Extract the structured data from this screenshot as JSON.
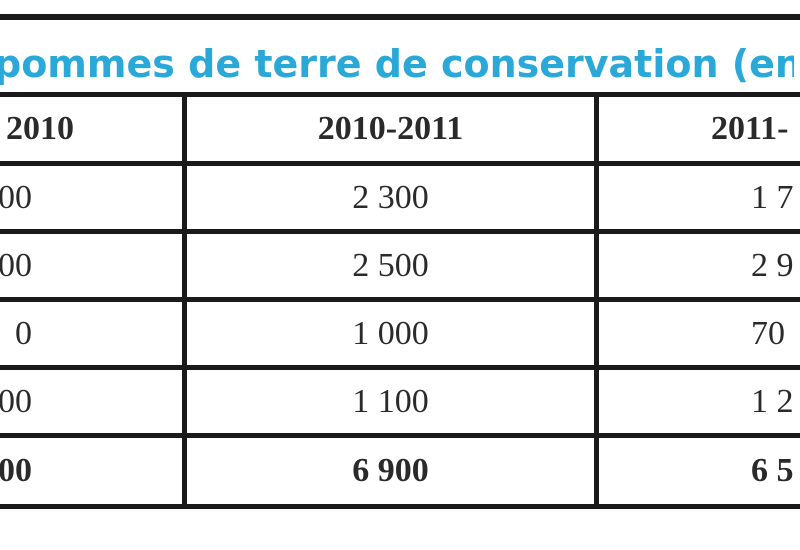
{
  "title": "pommes de terre de conservation (en",
  "columns": [
    "2010",
    "2010-2011",
    "2011-"
  ],
  "rows": [
    [
      "00",
      "2 300",
      "1 7"
    ],
    [
      "00",
      "2 500",
      "2 9"
    ],
    [
      "0",
      "1 000",
      "70"
    ],
    [
      "00",
      "1 100",
      "1 2"
    ]
  ],
  "total": [
    "00",
    "6 900",
    "6 5"
  ],
  "colors": {
    "title": "#2aa8d8",
    "rules": "#1a1a1a",
    "text": "#2a2a2a"
  }
}
